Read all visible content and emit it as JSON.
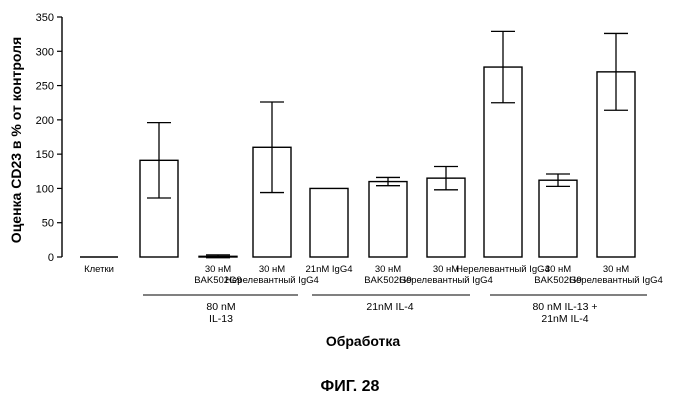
{
  "chart_data": {
    "type": "bar",
    "title": "",
    "ylabel": "Оценка CD23 в % от контроля",
    "xlabel": "Обработка",
    "ylim": [
      0,
      350
    ],
    "yticks": [
      0,
      50,
      100,
      150,
      200,
      250,
      300,
      350
    ],
    "categories": [
      {
        "lines": [
          "Клетки"
        ],
        "value": 0,
        "error": 0
      },
      {
        "lines": [
          ""
        ],
        "value": 141,
        "error": 55
      },
      {
        "lines": [
          "30 нМ",
          "BAK502G9"
        ],
        "value": 1,
        "error": 2
      },
      {
        "lines": [
          "30 нМ",
          "Нерелевантный IgG4"
        ],
        "value": 160,
        "error": 66
      },
      {
        "lines": [
          "21nM IgG4"
        ],
        "value": 100,
        "error": 0
      },
      {
        "lines": [
          "30 нМ",
          "BAK502G9"
        ],
        "value": 110,
        "error": 6
      },
      {
        "lines": [
          "30 нМ",
          "Нерелевантный IgG4"
        ],
        "value": 115,
        "error": 17
      },
      {
        "lines": [
          "Нерелевантный IgG4"
        ],
        "value": 277,
        "error": 52
      },
      {
        "lines": [
          "30 нМ",
          "BAK502G9"
        ],
        "value": 112,
        "error": 9
      },
      {
        "lines": [
          "30 нМ",
          "Нерелевантный IgG4"
        ],
        "value": 270,
        "error": 56
      }
    ],
    "groups": [
      {
        "lines": [
          "80 nM",
          "IL-13"
        ],
        "from": 1,
        "to": 3
      },
      {
        "lines": [
          "21nM IL-4"
        ],
        "from": 4,
        "to": 6
      },
      {
        "lines": [
          "80 nM IL-13 +",
          "21nM IL-4"
        ],
        "from": 7,
        "to": 9
      }
    ]
  },
  "caption": "ФИГ. 28"
}
